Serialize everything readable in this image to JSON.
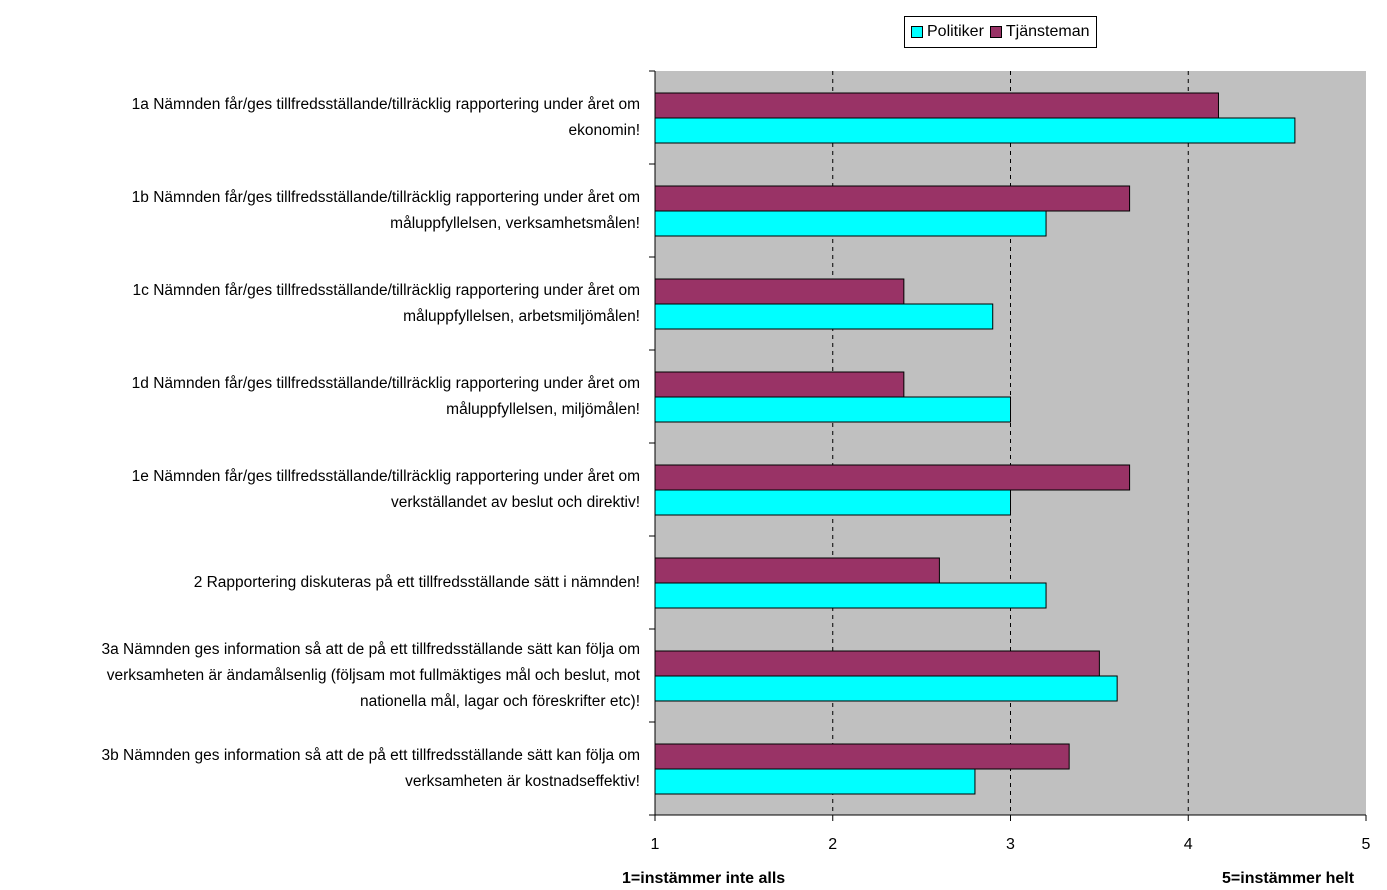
{
  "chart_data": {
    "type": "bar",
    "orientation": "horizontal",
    "categories": [
      "1a Nämnden får/ges tillfredsställande/tillräcklig rapportering under året om\nekonomin!",
      "1b Nämnden får/ges tillfredsställande/tillräcklig rapportering under året om\nmåluppfyllelsen, verksamhetsmålen!",
      "1c Nämnden får/ges tillfredsställande/tillräcklig rapportering under året om\nmåluppfyllelsen, arbetsmiljömålen!",
      "1d Nämnden får/ges tillfredsställande/tillräcklig rapportering under året om\nmåluppfyllelsen, miljömålen!",
      "1e Nämnden får/ges tillfredsställande/tillräcklig rapportering under året om\nverkställandet av beslut och direktiv!",
      "2 Rapportering diskuteras på ett tillfredsställande sätt i nämnden!",
      "3a Nämnden ges information så att de på ett tillfredsställande sätt kan följa om\nverksamheten är ändamålsenlig (följsam mot fullmäktiges mål och beslut, mot\nnationella mål, lagar och föreskrifter etc)!",
      "3b Nämnden ges information så att de på ett tillfredsställande sätt kan följa om\nverksamheten är kostnadseffektiv!"
    ],
    "series": [
      {
        "name": "Tjänsteman",
        "color": "#993366",
        "values": [
          4.17,
          3.67,
          2.4,
          2.4,
          3.67,
          2.6,
          3.5,
          3.33
        ]
      },
      {
        "name": "Politiker",
        "color": "#00FFFF",
        "values": [
          4.6,
          3.2,
          2.9,
          3.0,
          3.0,
          3.2,
          3.6,
          2.8
        ]
      }
    ],
    "legend_order": [
      "Politiker",
      "Tjänsteman"
    ],
    "xlim": [
      1,
      5
    ],
    "xticks": [
      "1",
      "2",
      "3",
      "4",
      "5"
    ],
    "x_min_note": "1=instämmer inte alls",
    "x_max_note": "5=instämmer helt",
    "plot_background": "#C0C0C0",
    "grid": "dashed vertical",
    "legend_position": "top"
  }
}
